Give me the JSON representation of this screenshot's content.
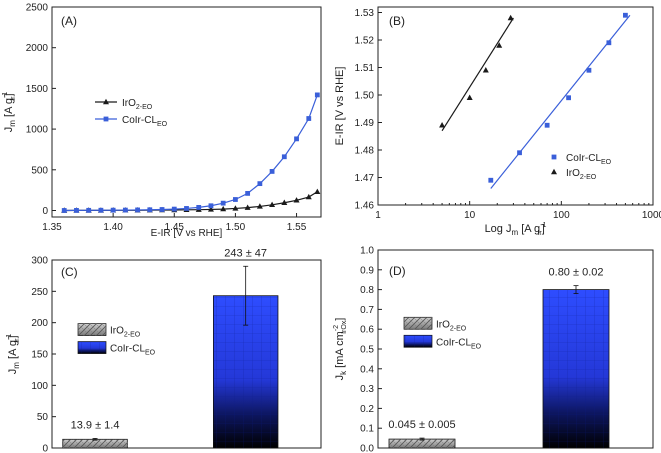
{
  "colors": {
    "iro2": "#1a1a1a",
    "coir": "#3a5fd9",
    "bar_blue_top": "#2e4dff",
    "bar_gray": "#b8b8b8"
  },
  "chart_data": [
    {
      "id": "A",
      "panel_label": "(A)",
      "type": "line",
      "xlabel": "E-IR [V vs RHE]",
      "ylabel": "J",
      "ylabel_sub": "m",
      "ylabel_unit_pre": " [A g",
      "ylabel_unit_sub": "Ir",
      "ylabel_unit_sup": "-1",
      "ylabel_unit_post": "]",
      "xlim": [
        1.35,
        1.57
      ],
      "ylim": [
        -80,
        2500
      ],
      "xticks": [
        1.35,
        1.4,
        1.45,
        1.5,
        1.55
      ],
      "xtick_labels": [
        "1.35",
        "1.40",
        "1.45",
        "1.50",
        "1.55"
      ],
      "yticks": [
        0,
        500,
        1000,
        1500,
        2000,
        2500
      ],
      "ytick_labels": [
        "0",
        "500",
        "1000",
        "1500",
        "2000",
        "2500"
      ],
      "legend": [
        {
          "base": "IrO",
          "sub": "2-EO"
        },
        {
          "base": "CoIr-CL",
          "sub": "EO"
        }
      ],
      "series": [
        {
          "name": "IrO2-EO",
          "marker": "triangle",
          "x": [
            1.36,
            1.37,
            1.38,
            1.39,
            1.4,
            1.41,
            1.42,
            1.43,
            1.44,
            1.45,
            1.46,
            1.47,
            1.48,
            1.49,
            1.5,
            1.51,
            1.52,
            1.53,
            1.54,
            1.55,
            1.56,
            1.567
          ],
          "y": [
            0,
            1,
            1,
            1,
            2,
            2,
            3,
            4,
            5,
            6,
            8,
            10,
            13,
            17,
            25,
            35,
            50,
            70,
            95,
            125,
            165,
            230
          ]
        },
        {
          "name": "CoIr-CL EO",
          "marker": "square",
          "x": [
            1.36,
            1.37,
            1.38,
            1.39,
            1.4,
            1.41,
            1.42,
            1.43,
            1.44,
            1.45,
            1.46,
            1.47,
            1.48,
            1.49,
            1.5,
            1.51,
            1.52,
            1.53,
            1.54,
            1.55,
            1.56,
            1.567
          ],
          "y": [
            0,
            1,
            2,
            3,
            4,
            5,
            7,
            9,
            12,
            17,
            25,
            38,
            58,
            90,
            135,
            210,
            330,
            480,
            660,
            880,
            1130,
            1420
          ]
        }
      ]
    },
    {
      "id": "B",
      "panel_label": "(B)",
      "type": "scatter",
      "xscale": "log",
      "xlabel": "Log J",
      "xlabel_sub": "m",
      "xlabel_unit_pre": " [A g",
      "xlabel_unit_sub": "Ir",
      "xlabel_unit_sup": "-1",
      "xlabel_unit_post": "]",
      "ylabel": "E-IR [V vs RHE]",
      "xlim": [
        1,
        1000
      ],
      "ylim": [
        1.46,
        1.532
      ],
      "xticks": [
        1,
        10,
        100,
        1000
      ],
      "xtick_labels": [
        "1",
        "10",
        "100",
        "1000"
      ],
      "yticks": [
        1.46,
        1.47,
        1.48,
        1.49,
        1.5,
        1.51,
        1.52,
        1.53
      ],
      "ytick_labels": [
        "1.46",
        "1.47",
        "1.48",
        "1.49",
        "1.50",
        "1.51",
        "1.52",
        "1.53"
      ],
      "legend": [
        {
          "base": "CoIr-CL",
          "sub": "EO"
        },
        {
          "base": "IrO",
          "sub": "2-EO"
        }
      ],
      "series": [
        {
          "name": "CoIr-CL EO",
          "marker": "square",
          "x": [
            17,
            35,
            70,
            120,
            200,
            330,
            500
          ],
          "y": [
            1.469,
            1.479,
            1.489,
            1.499,
            1.509,
            1.519,
            1.529
          ],
          "fit": {
            "x": [
              17,
              560
            ],
            "y": [
              1.466,
              1.529
            ]
          }
        },
        {
          "name": "IrO2-EO",
          "marker": "triangle",
          "x": [
            5,
            10,
            15,
            21,
            28
          ],
          "y": [
            1.489,
            1.499,
            1.509,
            1.518,
            1.528
          ],
          "fit": {
            "x": [
              5,
              30
            ],
            "y": [
              1.487,
              1.528
            ]
          }
        }
      ]
    },
    {
      "id": "C",
      "panel_label": "(C)",
      "type": "bar",
      "ylabel": "J",
      "ylabel_sub": "m",
      "ylabel_unit_pre": " [A g",
      "ylabel_unit_sub": "Ir",
      "ylabel_unit_sup": "-1",
      "ylabel_unit_post": "]",
      "ylim": [
        0,
        300
      ],
      "yticks": [
        0,
        50,
        100,
        150,
        200,
        250,
        300
      ],
      "ytick_labels": [
        "0",
        "50",
        "100",
        "150",
        "200",
        "250",
        "300"
      ],
      "categories": [
        "IrO2-EO",
        "CoIr-CL EO"
      ],
      "values": [
        13.9,
        243
      ],
      "errors": [
        1.4,
        47
      ],
      "value_labels": [
        "13.9 ± 1.4",
        "243 ± 47"
      ],
      "legend": [
        {
          "base": "IrO",
          "sub": "2-EO"
        },
        {
          "base": "CoIr-CL",
          "sub": "EO"
        }
      ]
    },
    {
      "id": "D",
      "panel_label": "(D)",
      "type": "bar",
      "ylabel": "J",
      "ylabel_sub": "k",
      "ylabel_unit_pre": " [mA cm",
      "ylabel_unit_sub": "IrOx",
      "ylabel_unit_sup": "-2",
      "ylabel_unit_post": "]",
      "ylim": [
        0,
        1.0
      ],
      "yticks": [
        0,
        0.1,
        0.2,
        0.3,
        0.4,
        0.5,
        0.6,
        0.7,
        0.8,
        0.9,
        1.0
      ],
      "ytick_labels": [
        "0.0",
        "0.1",
        "0.2",
        "0.3",
        "0.4",
        "0.5",
        "0.6",
        "0.7",
        "0.8",
        "0.9",
        "1.0"
      ],
      "categories": [
        "IrO2-EO",
        "CoIr-CL EO"
      ],
      "values": [
        0.045,
        0.8
      ],
      "errors": [
        0.005,
        0.02
      ],
      "value_labels": [
        "0.045 ± 0.005",
        "0.80 ± 0.02"
      ],
      "legend": [
        {
          "base": "IrO",
          "sub": "2-EO"
        },
        {
          "base": "CoIr-CL",
          "sub": "EO"
        }
      ]
    }
  ]
}
